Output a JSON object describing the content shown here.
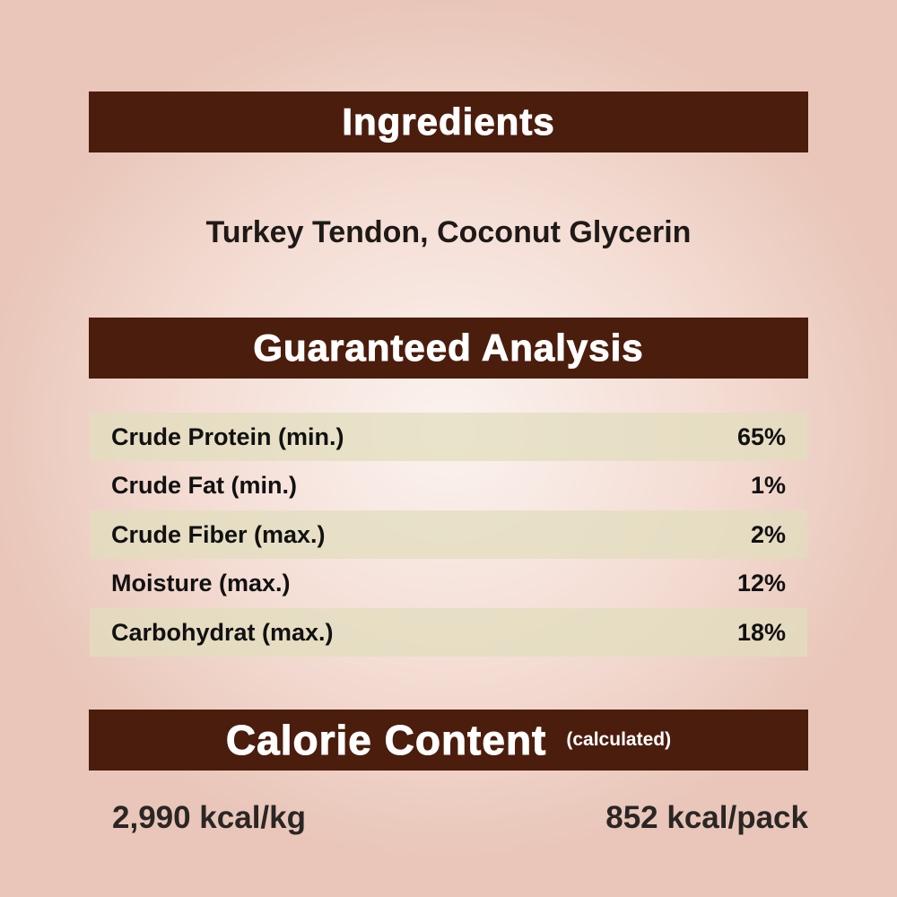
{
  "ingredients": {
    "heading": "Ingredients",
    "text": "Turkey Tendon, Coconut Glycerin"
  },
  "analysis": {
    "heading": "Guaranteed Analysis",
    "rows": [
      {
        "label": "Crude Protein (min.)",
        "value": "65%"
      },
      {
        "label": "Crude Fat (min.)",
        "value": "1%"
      },
      {
        "label": "Crude Fiber (max.)",
        "value": "2%"
      },
      {
        "label": "Moisture (max.)",
        "value": "12%"
      },
      {
        "label": "Carbohydrat (max.)",
        "value": "18%"
      }
    ]
  },
  "calorie": {
    "heading": "Calorie Content",
    "note": "(calculated)",
    "per_kg": "2,990 kcal/kg",
    "per_pack": "852 kcal/pack"
  },
  "colors": {
    "banner": "#4b1d0d",
    "row_band": "#e1debe",
    "text": "#111111"
  }
}
